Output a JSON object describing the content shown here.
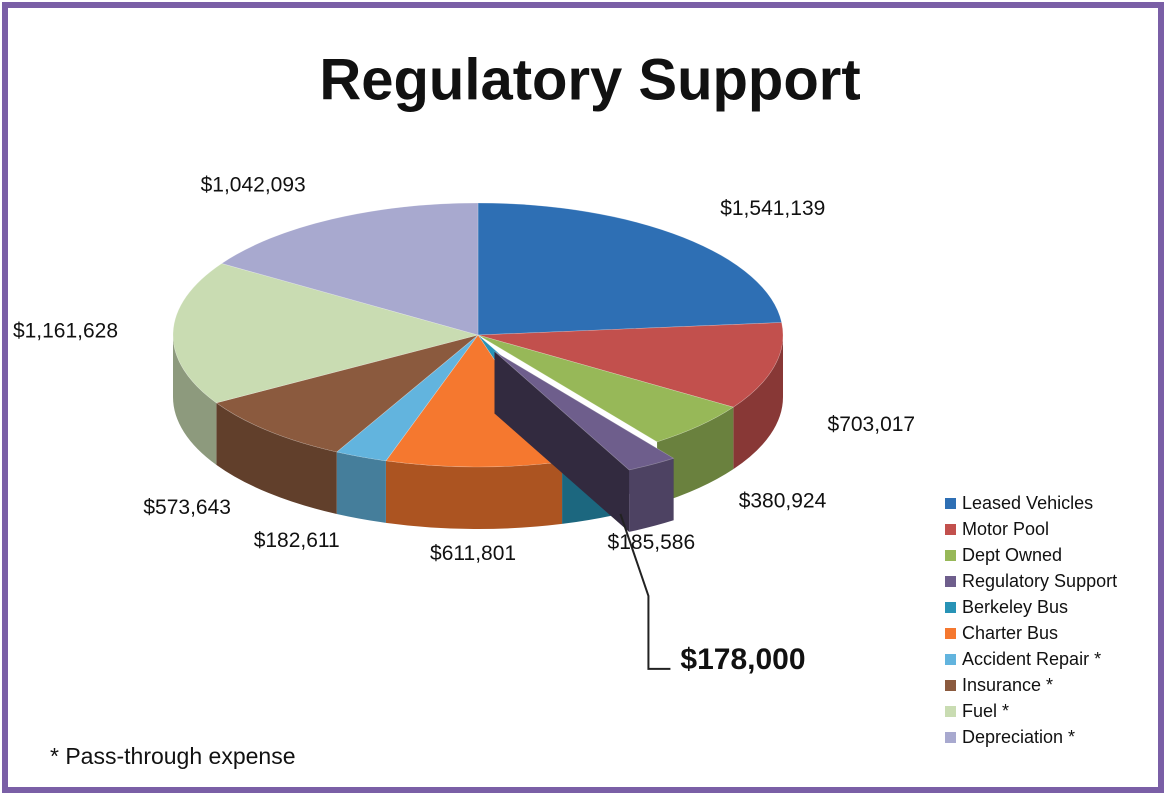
{
  "chart_data": {
    "type": "pie",
    "title": "Regulatory Support",
    "categories": [
      "Leased Vehicles",
      "Motor Pool",
      "Dept Owned",
      "Regulatory Support",
      "Berkeley Bus",
      "Charter Bus",
      "Accident Repair *",
      "Insurance *",
      "Fuel *",
      "Depreciation *"
    ],
    "values": [
      1541139,
      703017,
      380924,
      178000,
      185586,
      611801,
      182611,
      573643,
      1161628,
      1042093
    ],
    "value_labels": [
      "$1,541,139",
      "$703,017",
      "$380,924",
      "$178,000",
      "$185,586",
      "$611,801",
      "$182,611",
      "$573,643",
      "$1,161,628",
      "$1,042,093"
    ],
    "colors": [
      "#2e6fb4",
      "#c2504d",
      "#97b858",
      "#6e5e8c",
      "#2893b6",
      "#f5782f",
      "#62b4de",
      "#8b5a3e",
      "#c9dcb2",
      "#a8a9cf"
    ],
    "explode": [
      false,
      false,
      false,
      true,
      false,
      false,
      false,
      false,
      false,
      false
    ],
    "legend": "right",
    "annotation": "* Pass-through expense"
  }
}
